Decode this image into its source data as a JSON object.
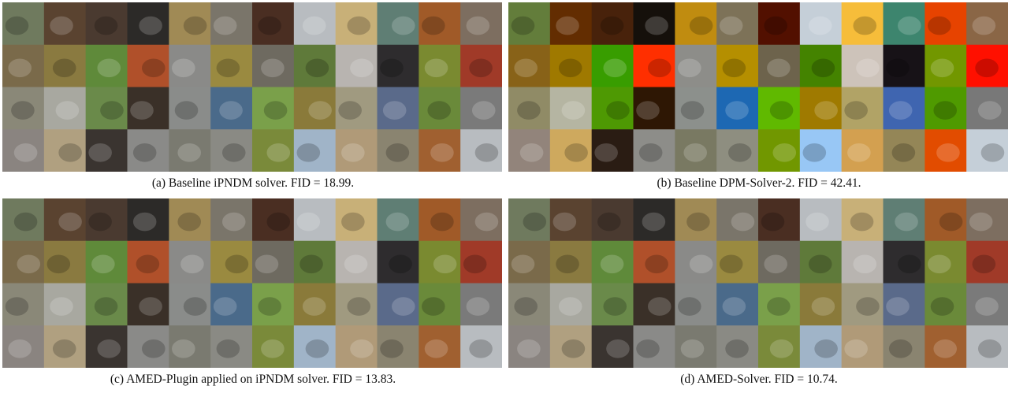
{
  "panels": [
    {
      "caption": "(a) Baseline iPNDM solver. FID = 18.99."
    },
    {
      "caption": "(b) Baseline DPM-Solver-2. FID = 42.41."
    },
    {
      "caption": "(c) AMED-Plugin applied on iPNDM solver. FID = 13.83."
    },
    {
      "caption": "(d) AMED-Solver. FID = 10.74."
    }
  ]
}
